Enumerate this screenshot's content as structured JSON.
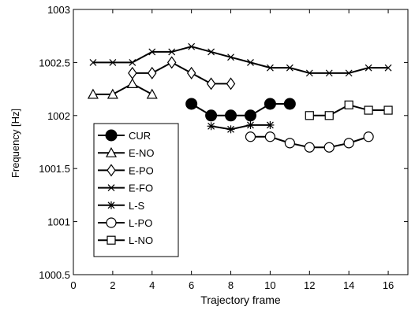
{
  "chart_data": {
    "type": "line",
    "xlabel": "Trajectory frame",
    "ylabel": "Frequency [Hz]",
    "xlim": [
      0,
      17
    ],
    "ylim": [
      1000.5,
      1003
    ],
    "xticks": [
      0,
      2,
      4,
      6,
      8,
      10,
      12,
      14,
      16
    ],
    "yticks": [
      1000.5,
      1001,
      1001.5,
      1002,
      1002.5,
      1003
    ],
    "ytick_labels": [
      "1000.5",
      "1001",
      "1001.5",
      "1002",
      "1002.5",
      "1003"
    ],
    "grid": false,
    "legend_position": "lower-left",
    "series": [
      {
        "name": "CUR",
        "marker": "filled-circle",
        "x": [
          6,
          7,
          8,
          9,
          10,
          11
        ],
        "y": [
          1002.11,
          1002.0,
          1002.0,
          1002.0,
          1002.11,
          1002.11
        ]
      },
      {
        "name": "E-NO",
        "marker": "triangle",
        "x": [
          1,
          2,
          3,
          4
        ],
        "y": [
          1002.2,
          1002.2,
          1002.3,
          1002.2
        ]
      },
      {
        "name": "E-PO",
        "marker": "diamond",
        "x": [
          3,
          4,
          5,
          6,
          7,
          8
        ],
        "y": [
          1002.4,
          1002.4,
          1002.5,
          1002.4,
          1002.3,
          1002.3
        ]
      },
      {
        "name": "E-FO",
        "marker": "x",
        "x": [
          1,
          2,
          3,
          4,
          5,
          6,
          7,
          8,
          9,
          10,
          11,
          12,
          13,
          14,
          15,
          16
        ],
        "y": [
          1002.5,
          1002.5,
          1002.5,
          1002.6,
          1002.6,
          1002.65,
          1002.6,
          1002.55,
          1002.5,
          1002.45,
          1002.45,
          1002.4,
          1002.4,
          1002.4,
          1002.45,
          1002.45
        ]
      },
      {
        "name": "L-S",
        "marker": "asterisk",
        "x": [
          7,
          8,
          9,
          10
        ],
        "y": [
          1001.9,
          1001.87,
          1001.91,
          1001.91
        ]
      },
      {
        "name": "L-PO",
        "marker": "open-circle",
        "x": [
          9,
          10,
          11,
          12,
          13,
          14,
          15
        ],
        "y": [
          1001.8,
          1001.8,
          1001.74,
          1001.7,
          1001.7,
          1001.74,
          1001.8
        ]
      },
      {
        "name": "L-NO",
        "marker": "square",
        "x": [
          12,
          13,
          14,
          15,
          16
        ],
        "y": [
          1002.0,
          1002.0,
          1002.1,
          1002.05,
          1002.05
        ]
      }
    ]
  }
}
